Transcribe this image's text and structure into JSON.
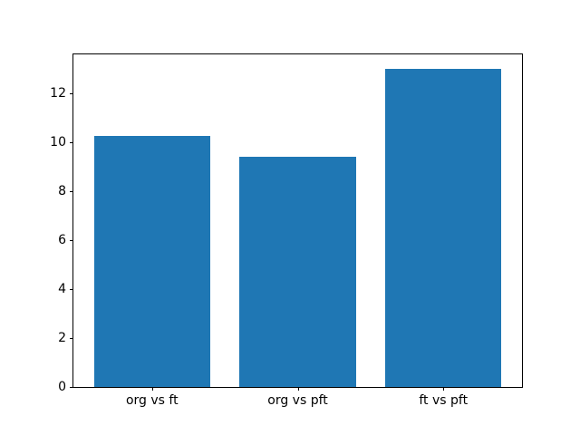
{
  "chart_data": {
    "type": "bar",
    "categories": [
      "org vs ft",
      "org vs pft",
      "ft vs pft"
    ],
    "values": [
      10.25,
      9.4,
      13.0
    ],
    "title": "",
    "xlabel": "",
    "ylabel": "",
    "yticks": [
      0,
      2,
      4,
      6,
      8,
      10,
      12
    ],
    "ylim": [
      0,
      13.6
    ],
    "xlim": [
      -0.54,
      2.54
    ],
    "bar_width": 0.8,
    "bar_color": "#1f77b4",
    "axis_color": "#000000",
    "text_color": "#000000",
    "background_color": "#ffffff",
    "grid": false,
    "legend": null
  }
}
